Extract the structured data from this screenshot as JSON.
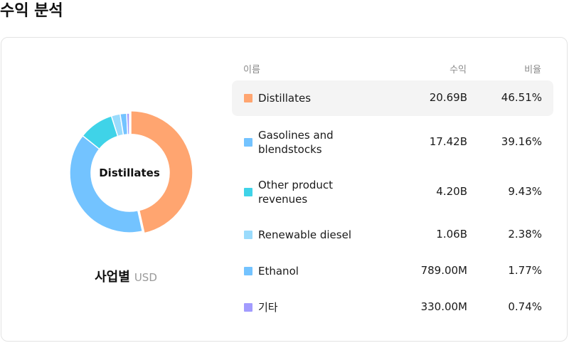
{
  "page_title": "수익 분석",
  "donut_center_label": "Distillates",
  "breakdown_label": "사업별",
  "currency": "USD",
  "table": {
    "headers": {
      "name": "이름",
      "revenue": "수익",
      "ratio": "비율"
    },
    "rows": [
      {
        "name": "Distillates",
        "value": "20.69B",
        "percent": "46.51%",
        "color": "#FFA570",
        "selected": true
      },
      {
        "name": "Gasolines and blendstocks",
        "value": "17.42B",
        "percent": "39.16%",
        "color": "#73C3FF",
        "selected": false
      },
      {
        "name": "Other product revenues",
        "value": "4.20B",
        "percent": "9.43%",
        "color": "#3FD3E8",
        "selected": false
      },
      {
        "name": "Renewable diesel",
        "value": "1.06B",
        "percent": "2.38%",
        "color": "#9ADBFC",
        "selected": false
      },
      {
        "name": "Ethanol",
        "value": "789.00M",
        "percent": "1.77%",
        "color": "#73C3FF",
        "selected": false
      },
      {
        "name": "기타",
        "value": "330.00M",
        "percent": "0.74%",
        "color": "#A29BFE",
        "selected": false
      }
    ]
  },
  "chart_data": {
    "type": "pie",
    "variant": "donut",
    "categories": [
      "Distillates",
      "Gasolines and blendstocks",
      "Other product revenues",
      "Renewable diesel",
      "Ethanol",
      "기타"
    ],
    "values": [
      46.51,
      39.16,
      9.43,
      2.38,
      1.77,
      0.74
    ],
    "colors": [
      "#FFA570",
      "#73C3FF",
      "#3FD3E8",
      "#9ADBFC",
      "#73C3FF",
      "#A29BFE"
    ],
    "highlighted": "Distillates"
  }
}
